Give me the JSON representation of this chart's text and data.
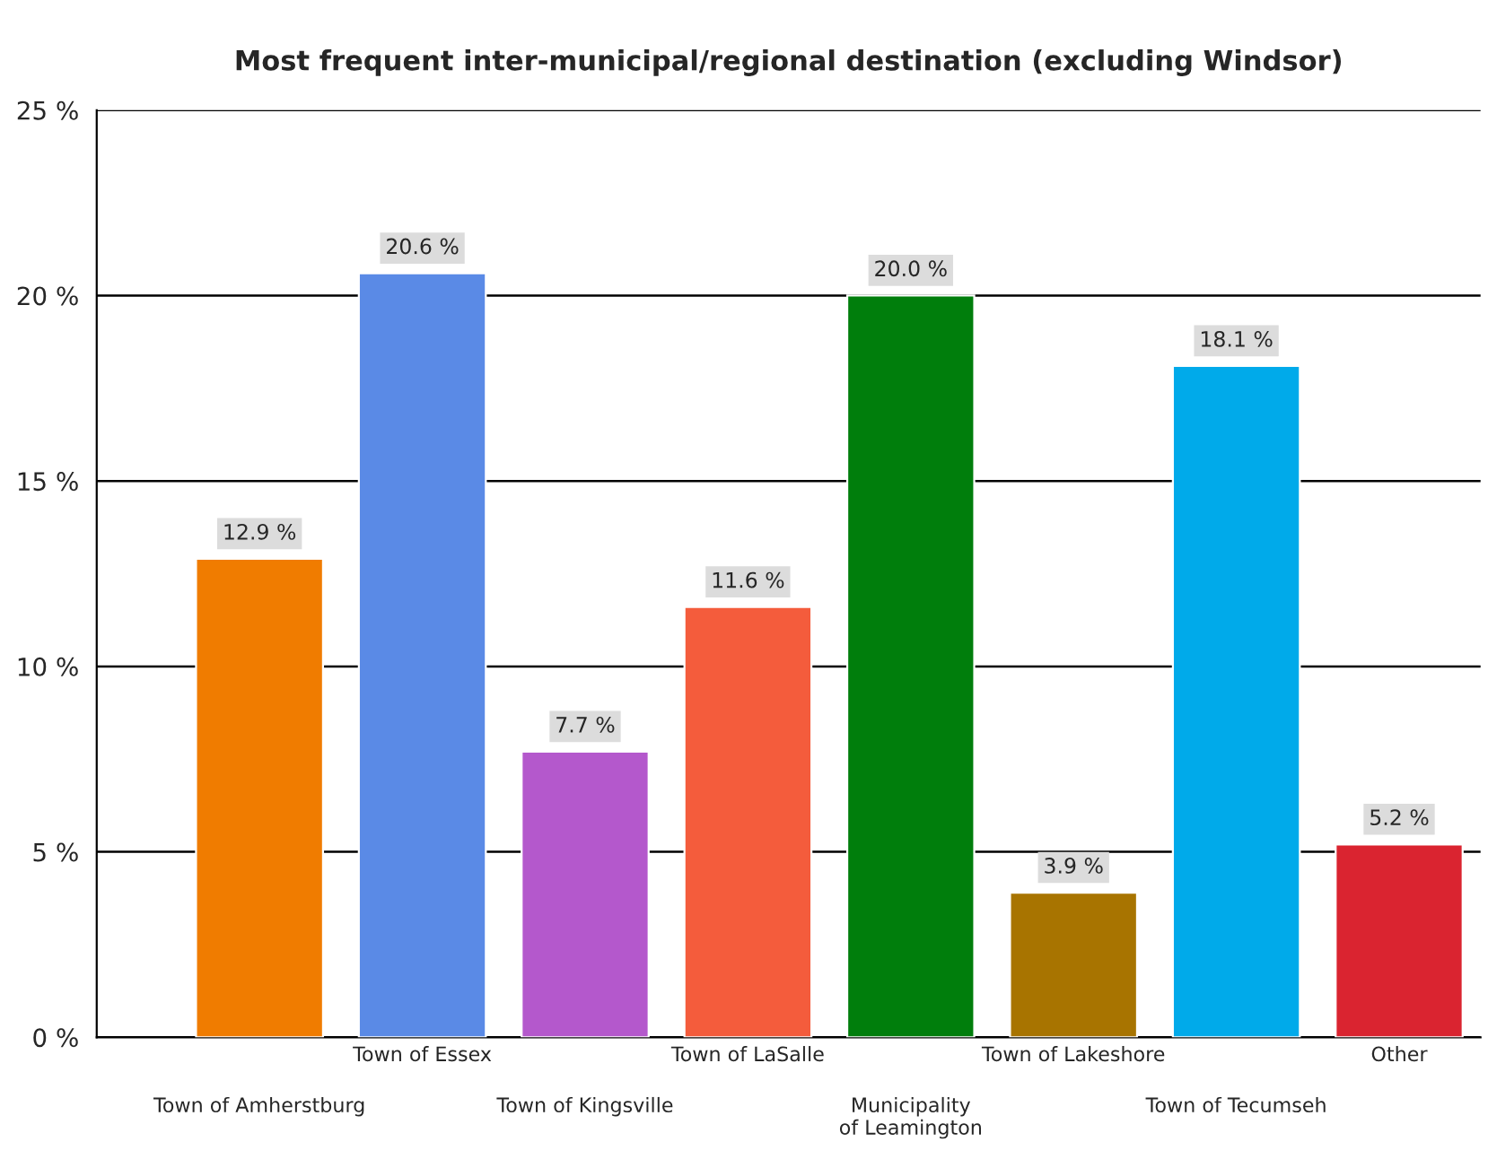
{
  "chart_data": {
    "type": "bar",
    "title": "Most frequent inter-municipal/regional destination (excluding Windsor)",
    "categories": [
      "Town of Amherstburg",
      "Town of Essex",
      "Town of Kingsville",
      "Town of LaSalle",
      "Municipality\nof Leamington",
      "Town of Lakeshore",
      "Town of Tecumseh",
      "Other"
    ],
    "values": [
      12.9,
      20.6,
      7.7,
      11.6,
      20.0,
      3.9,
      18.1,
      5.2
    ],
    "value_labels": [
      "12.9 %",
      "20.6 %",
      "7.7 %",
      "11.6 %",
      "20.0 %",
      "3.9 %",
      "18.1 %",
      "5.2 %"
    ],
    "colors": [
      "#f07c00",
      "#5a8ae6",
      "#b458cc",
      "#f45c3c",
      "#007e0c",
      "#a87400",
      "#00aaea",
      "#da2430"
    ],
    "ylim": [
      0,
      25
    ],
    "yticks": [
      {
        "value": 0,
        "label": "0 %"
      },
      {
        "value": 5,
        "label": "5 %"
      },
      {
        "value": 10,
        "label": "10 %"
      },
      {
        "value": 15,
        "label": "15 %"
      },
      {
        "value": 20,
        "label": "20 %"
      },
      {
        "value": 25,
        "label": "25 %"
      }
    ],
    "grid": "y"
  }
}
